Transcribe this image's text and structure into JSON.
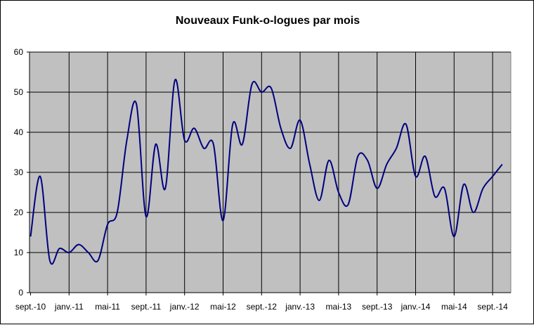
{
  "chart_data": {
    "type": "line",
    "title": "Nouveaux Funk-o-logues par mois",
    "xlabel": "",
    "ylabel": "",
    "ylim": [
      0,
      60
    ],
    "yticks": [
      0,
      10,
      20,
      30,
      40,
      50,
      60
    ],
    "xtick_labels": [
      "sept.-10",
      "janv.-11",
      "mai-11",
      "sept.-11",
      "janv.-12",
      "mai-12",
      "sept.-12",
      "janv.-13",
      "mai-13",
      "sept.-13",
      "janv.-14",
      "mai-14",
      "sept.-14"
    ],
    "grid": true,
    "legend": "none",
    "colors": {
      "plot_background": "#c0c0c0",
      "line": "#000080",
      "grid": "#000000"
    },
    "series": [
      {
        "values": [
          14,
          29,
          8,
          11,
          10,
          12,
          10,
          8,
          17,
          20,
          38,
          47,
          19,
          37,
          26,
          53,
          38,
          41,
          36,
          37,
          18,
          42,
          37,
          52,
          50,
          51,
          41,
          36,
          43,
          32,
          23,
          33,
          25,
          22,
          34,
          33,
          26,
          32,
          36,
          42,
          29,
          34,
          24,
          26,
          14,
          27,
          20,
          26,
          29,
          32
        ]
      }
    ]
  }
}
